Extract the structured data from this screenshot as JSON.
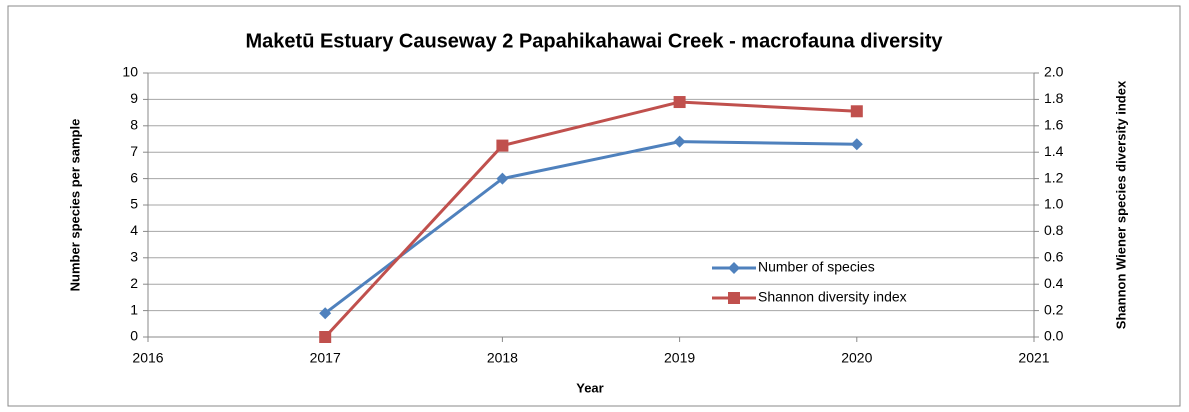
{
  "chart_data": {
    "type": "line",
    "title": "Maketū Estuary Causeway 2  Papahikahawai Creek  - macrofauna diversity",
    "x_label": "Year",
    "y_label": "Number species per sample",
    "y2_label": "Shannon Wiener species diversity index",
    "x": [
      2017,
      2018,
      2019,
      2020
    ],
    "series": [
      {
        "name": "Number of species",
        "color": "#4f81bd",
        "marker": "diamond",
        "values": [
          0.9,
          6.0,
          7.4,
          7.3
        ]
      },
      {
        "name": "Shannon diversity index",
        "color": "#c0504d",
        "marker": "square",
        "axis": "y2",
        "values": [
          0.0,
          1.45,
          1.78,
          1.71
        ]
      }
    ],
    "xlim": [
      2016,
      2021
    ],
    "xticks": [
      2016,
      2017,
      2018,
      2019,
      2020,
      2021
    ],
    "ylim": [
      0,
      10
    ],
    "yticks": [
      0,
      1,
      2,
      3,
      4,
      5,
      6,
      7,
      8,
      9,
      10
    ],
    "y2lim": [
      0,
      2
    ],
    "y2ticks": [
      {
        "value": 0,
        "label": "0.0"
      },
      0.2,
      0.4,
      0.6,
      0.8,
      {
        "value": 1,
        "label": "1.0"
      },
      1.2,
      1.4,
      1.6,
      1.8,
      {
        "value": 2,
        "label": "2.0"
      }
    ],
    "grid": true
  }
}
